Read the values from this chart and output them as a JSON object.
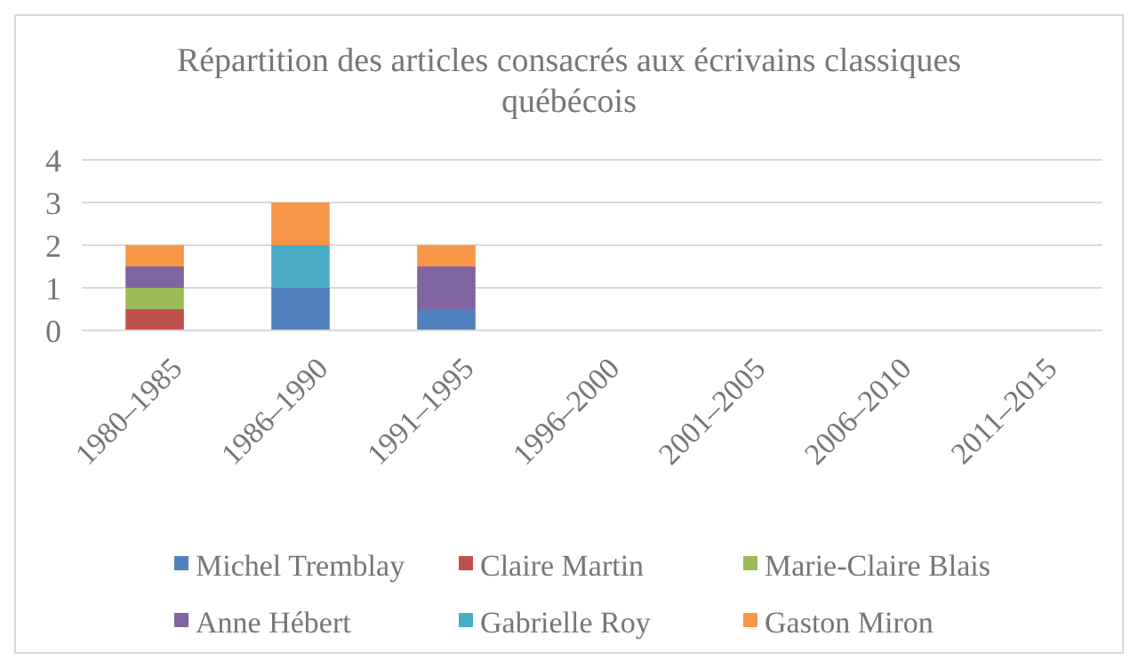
{
  "chart_data": {
    "type": "bar",
    "stacked": true,
    "title": "Répartition des articles consacrés aux écrivains classiques québécois",
    "categories": [
      "1980–1985",
      "1986–1990",
      "1991–1995",
      "1996–2000",
      "2001–2005",
      "2006–2010",
      "2011–2015"
    ],
    "series": [
      {
        "name": "Michel Tremblay",
        "color": "#4f81bd",
        "values": [
          0,
          1,
          0.5,
          0,
          0,
          0,
          0
        ]
      },
      {
        "name": "Claire Martin",
        "color": "#c0504d",
        "values": [
          0.5,
          0,
          0,
          0,
          0,
          0,
          0
        ]
      },
      {
        "name": "Marie-Claire Blais",
        "color": "#9bbb59",
        "values": [
          0.5,
          0,
          0,
          0,
          0,
          0,
          0
        ]
      },
      {
        "name": "Anne Hébert",
        "color": "#8064a2",
        "values": [
          0.5,
          0,
          1,
          0,
          0,
          0,
          0
        ]
      },
      {
        "name": "Gabrielle Roy",
        "color": "#4bacc6",
        "values": [
          0,
          1,
          0,
          0,
          0,
          0,
          0
        ]
      },
      {
        "name": "Gaston Miron",
        "color": "#f79646",
        "values": [
          0.5,
          1,
          0.5,
          0,
          0,
          0,
          0
        ]
      }
    ],
    "ylim": [
      0,
      4
    ],
    "yticks": [
      0,
      1,
      2,
      3,
      4
    ],
    "grid": "y",
    "legend": "bottom"
  }
}
